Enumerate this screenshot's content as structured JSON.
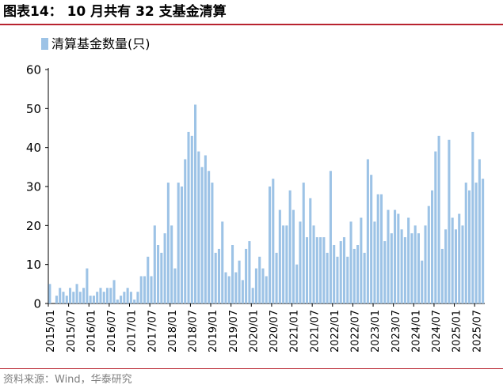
{
  "title": "图表14：  10 月共有 32 支基金清算",
  "source": "资料来源：Wind，华泰研究",
  "chart_data": {
    "type": "bar",
    "title": "图表14：  10 月共有 32 支基金清算",
    "xlabel": "",
    "ylabel": "",
    "ylim": [
      0,
      60
    ],
    "yticks": [
      0,
      10,
      20,
      30,
      40,
      50,
      60
    ],
    "grid": false,
    "legend_position": "top-left",
    "bar_color": "#9dc3e6",
    "series": [
      {
        "name": "清算基金数量(只)",
        "values": [
          5,
          0,
          2,
          4,
          3,
          2,
          4,
          3,
          5,
          3,
          4,
          9,
          2,
          2,
          3,
          4,
          3,
          4,
          4,
          6,
          1,
          2,
          3,
          4,
          3,
          1,
          3,
          7,
          7,
          12,
          7,
          20,
          15,
          13,
          18,
          31,
          20,
          9,
          31,
          30,
          37,
          44,
          43,
          51,
          39,
          35,
          38,
          34,
          31,
          13,
          14,
          21,
          8,
          7,
          15,
          8,
          11,
          6,
          14,
          16,
          4,
          9,
          12,
          9,
          7,
          30,
          32,
          13,
          24,
          20,
          20,
          29,
          24,
          10,
          21,
          31,
          17,
          27,
          20,
          17,
          17,
          17,
          13,
          34,
          15,
          12,
          16,
          17,
          12,
          21,
          14,
          15,
          22,
          13,
          37,
          33,
          21,
          28,
          28,
          16,
          24,
          18,
          24,
          23,
          19,
          17,
          22,
          18,
          20,
          18,
          11,
          20,
          25,
          29,
          39,
          43,
          14,
          19,
          42,
          22,
          19,
          23,
          20,
          31,
          29,
          44,
          31,
          37,
          32
        ]
      }
    ],
    "x_tick_labels": [
      "2015/01",
      "2015/07",
      "2016/01",
      "2016/07",
      "2017/01",
      "2017/07",
      "2018/01",
      "2018/07",
      "2019/01",
      "2019/07",
      "2020/01",
      "2020/07",
      "2021/01",
      "2021/07",
      "2022/01",
      "2022/07",
      "2023/01",
      "2023/07",
      "2024/01",
      "2024/07",
      "2025/01",
      "2025/07"
    ]
  }
}
